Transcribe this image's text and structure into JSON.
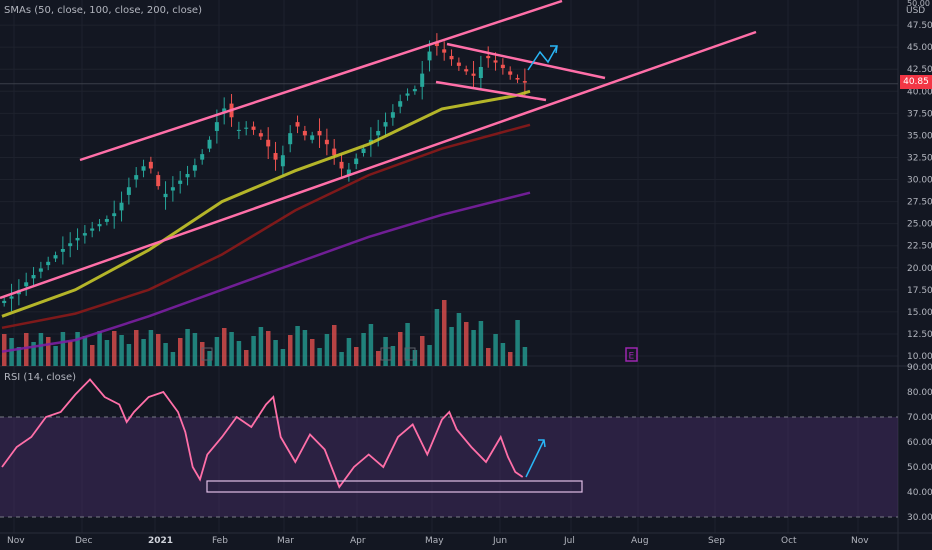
{
  "main_pane": {
    "indicator_label": "SMAs (50, close, 100, close, 200, close)",
    "currency": "USD",
    "top_tick_partial": "50.00",
    "last_price": "40.85",
    "last_price_color": "#f23645"
  },
  "rsi_pane": {
    "indicator_label": "RSI (14, close)"
  },
  "colors": {
    "background": "#131722",
    "up": "#26a69a",
    "down": "#ef5350",
    "sma50": "#c7c72a",
    "sma100": "#8b1a1a",
    "sma200": "#7b1fa2",
    "trend_lines": "#ff6fa8",
    "arrows": "#29b6f6",
    "rsi_line": "#ff6fa8",
    "rsi_band": "#4a2f6b",
    "earnings_marker": "#9c27b0"
  },
  "chart_data": [
    {
      "type": "candlestick",
      "title": "",
      "y_axis": {
        "min": 8.0,
        "max": 50.0,
        "ticks": [
          "10.00",
          "12.50",
          "15.00",
          "17.50",
          "20.00",
          "22.50",
          "25.00",
          "27.50",
          "30.00",
          "32.50",
          "35.00",
          "37.50",
          "40.00",
          "42.50",
          "45.00",
          "47.50"
        ]
      },
      "x_axis": {
        "ticks": [
          "Nov",
          "Dec",
          "2021",
          "Feb",
          "Mar",
          "Apr",
          "May",
          "Jun",
          "Jul",
          "Aug",
          "Sep",
          "Oct",
          "Nov"
        ]
      },
      "price_path": [
        [
          0,
          16.0
        ],
        [
          2,
          17.0
        ],
        [
          4,
          18.8
        ],
        [
          6,
          20.3
        ],
        [
          8,
          21.8
        ],
        [
          10,
          23.1
        ],
        [
          12,
          24.2
        ],
        [
          14,
          25.2
        ],
        [
          16,
          26.5
        ],
        [
          18,
          30.0
        ],
        [
          20,
          32.0
        ],
        [
          21,
          30.5
        ],
        [
          22,
          28.0
        ],
        [
          24,
          29.5
        ],
        [
          26,
          31.0
        ],
        [
          28,
          33.5
        ],
        [
          30,
          37.5
        ],
        [
          31,
          38.6
        ],
        [
          32,
          35.5
        ],
        [
          34,
          36.0
        ],
        [
          36,
          34.5
        ],
        [
          38,
          31.5
        ],
        [
          40,
          36.5
        ],
        [
          42,
          34.5
        ],
        [
          43,
          35.5
        ],
        [
          45,
          33.5
        ],
        [
          47,
          30.5
        ],
        [
          49,
          33.0
        ],
        [
          51,
          35.0
        ],
        [
          53,
          37.0
        ],
        [
          55,
          39.5
        ],
        [
          57,
          40.5
        ],
        [
          58,
          43.5
        ],
        [
          59,
          45.5
        ],
        [
          61,
          44.0
        ],
        [
          63,
          42.5
        ],
        [
          65,
          41.5
        ],
        [
          66,
          44.0
        ],
        [
          68,
          43.0
        ],
        [
          70,
          41.5
        ],
        [
          72,
          40.8
        ]
      ],
      "candle_count": 72,
      "series": [
        {
          "name": "SMA 50",
          "path": [
            [
              0,
              14.5
            ],
            [
              10,
              17.5
            ],
            [
              20,
              22.0
            ],
            [
              30,
              27.5
            ],
            [
              40,
              31.0
            ],
            [
              50,
              34.0
            ],
            [
              60,
              38.0
            ],
            [
              70,
              39.5
            ],
            [
              72,
              40.0
            ]
          ]
        },
        {
          "name": "SMA 100",
          "path": [
            [
              0,
              13.2
            ],
            [
              10,
              14.8
            ],
            [
              20,
              17.5
            ],
            [
              30,
              21.5
            ],
            [
              40,
              26.5
            ],
            [
              50,
              30.5
            ],
            [
              60,
              33.5
            ],
            [
              72,
              36.2
            ]
          ]
        },
        {
          "name": "SMA 200",
          "path": [
            [
              0,
              10.5
            ],
            [
              10,
              11.8
            ],
            [
              20,
              14.5
            ],
            [
              30,
              17.5
            ],
            [
              40,
              20.5
            ],
            [
              50,
              23.5
            ],
            [
              60,
              26.0
            ],
            [
              72,
              28.5
            ]
          ]
        }
      ],
      "volume": {
        "axis": "overlay"
      },
      "earnings_markers": [
        "E"
      ]
    },
    {
      "type": "line",
      "title": "",
      "y_axis": {
        "min": 26.0,
        "max": 90.0,
        "ticks": [
          "30.00",
          "40.00",
          "50.00",
          "60.00",
          "70.00",
          "80.00",
          "90.00"
        ]
      },
      "overbought": 70,
      "oversold": 30,
      "x_axis": {
        "ticks": [
          "Nov",
          "Dec",
          "2021",
          "Feb",
          "Mar",
          "Apr",
          "May",
          "Jun",
          "Jul",
          "Aug",
          "Sep",
          "Oct",
          "Nov"
        ]
      },
      "series": [
        {
          "name": "RSI",
          "path": [
            [
              0,
              50
            ],
            [
              2,
              58
            ],
            [
              4,
              62
            ],
            [
              6,
              70
            ],
            [
              8,
              72
            ],
            [
              10,
              79
            ],
            [
              12,
              85
            ],
            [
              14,
              78
            ],
            [
              16,
              75
            ],
            [
              17,
              68
            ],
            [
              18,
              72
            ],
            [
              20,
              78
            ],
            [
              22,
              80
            ],
            [
              24,
              72
            ],
            [
              25,
              64
            ],
            [
              26,
              50
            ],
            [
              27,
              45
            ],
            [
              28,
              55
            ],
            [
              30,
              62
            ],
            [
              32,
              70
            ],
            [
              34,
              66
            ],
            [
              36,
              75
            ],
            [
              37,
              78
            ],
            [
              38,
              62
            ],
            [
              40,
              52
            ],
            [
              42,
              63
            ],
            [
              44,
              57
            ],
            [
              46,
              42
            ],
            [
              48,
              50
            ],
            [
              50,
              55
            ],
            [
              52,
              50
            ],
            [
              54,
              62
            ],
            [
              56,
              67
            ],
            [
              58,
              55
            ],
            [
              60,
              69
            ],
            [
              61,
              72
            ],
            [
              62,
              65
            ],
            [
              64,
              58
            ],
            [
              66,
              52
            ],
            [
              68,
              62
            ],
            [
              69,
              54
            ],
            [
              70,
              48
            ],
            [
              71,
              46
            ]
          ]
        }
      ]
    }
  ]
}
